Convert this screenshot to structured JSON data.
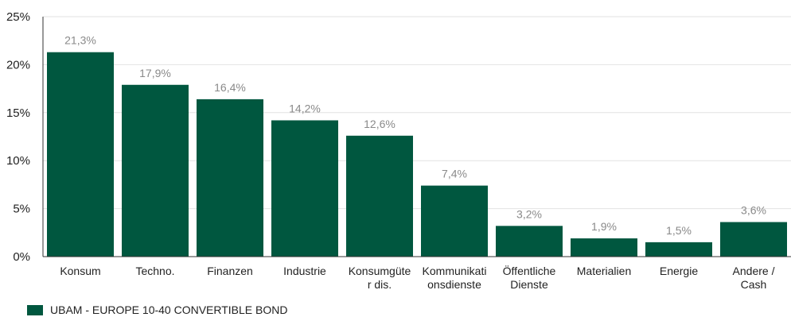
{
  "chart_data": {
    "type": "bar",
    "categories": [
      [
        "Konsum"
      ],
      [
        "Techno."
      ],
      [
        "Finanzen"
      ],
      [
        "Industrie"
      ],
      [
        "Konsumgüte",
        "r dis."
      ],
      [
        "Kommunikati",
        "onsdienste"
      ],
      [
        "Öffentliche",
        "Dienste"
      ],
      [
        "Materialien"
      ],
      [
        "Energie"
      ],
      [
        "Andere /",
        "Cash"
      ]
    ],
    "values": [
      21.3,
      17.9,
      16.4,
      14.2,
      12.6,
      7.4,
      3.2,
      1.9,
      1.5,
      3.6
    ],
    "data_labels": [
      "21,3%",
      "17,9%",
      "16,4%",
      "14,2%",
      "12,6%",
      "7,4%",
      "3,2%",
      "1,9%",
      "1,5%",
      "3,6%"
    ],
    "y_ticks": [
      0,
      5,
      10,
      15,
      20,
      25
    ],
    "y_tick_labels": [
      "0%",
      "5%",
      "10%",
      "15%",
      "20%",
      "25%"
    ],
    "ylim": [
      0,
      25
    ],
    "grid": true,
    "legend_position": "bottom-left",
    "series_name": "UBAM - EUROPE 10-40 CONVERTIBLE BOND",
    "bar_color": "#00573f",
    "grid_color": "#e2e2e2"
  }
}
